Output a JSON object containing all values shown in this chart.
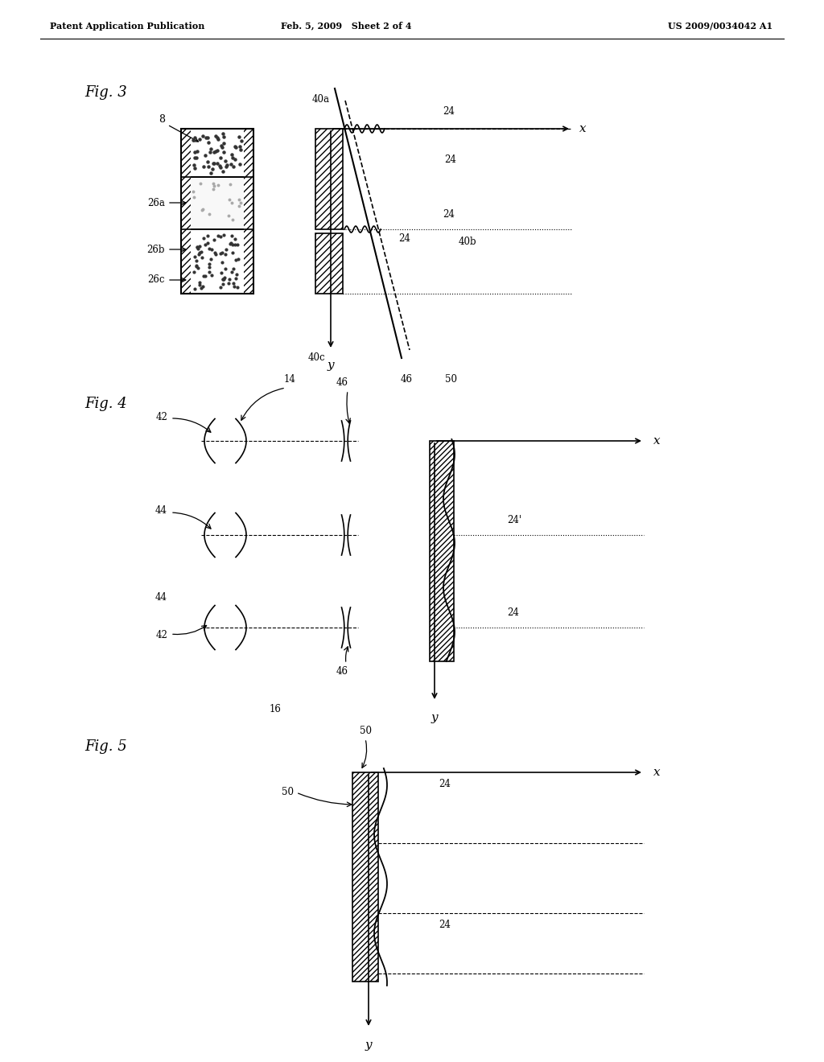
{
  "bg_color": "#ffffff",
  "header_left": "Patent Application Publication",
  "header_mid": "Feb. 5, 2009   Sheet 2 of 4",
  "header_right": "US 2009/0034042 A1",
  "fig3_label": "Fig. 3",
  "fig4_label": "Fig. 4",
  "fig5_label": "Fig. 5",
  "line_color": "#000000"
}
